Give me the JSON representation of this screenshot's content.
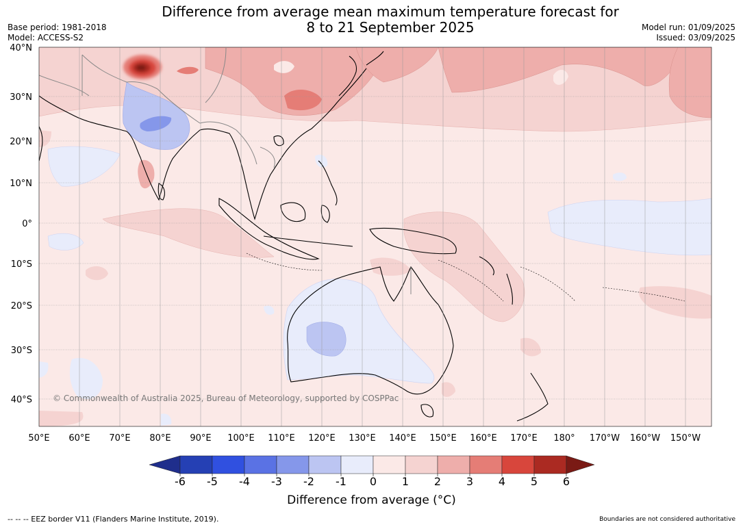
{
  "title": {
    "line1": "Difference from average mean maximum temperature forecast for",
    "line2": "8 to 21 September 2025"
  },
  "meta": {
    "base_period": "Base period: 1981-2018",
    "model": "Model: ACCESS-S2",
    "model_run": "Model run: 01/09/2025",
    "issued": "Issued: 03/09/2025"
  },
  "map": {
    "latitude_labels": [
      "40°N",
      "30°N",
      "20°N",
      "10°N",
      "0°",
      "10°S",
      "20°S",
      "30°S",
      "40°S"
    ],
    "longitude_labels": [
      "50°E",
      "60°E",
      "70°E",
      "80°E",
      "90°E",
      "100°E",
      "110°E",
      "120°E",
      "130°E",
      "140°E",
      "150°E",
      "160°E",
      "170°E",
      "180°",
      "170°W",
      "160°W",
      "150°W"
    ],
    "copyright": "© Commonwealth of Australia 2025, Bureau of Meteorology, supported by COSPPac"
  },
  "colorbar": {
    "ticks": [
      "-6",
      "-5",
      "-4",
      "-3",
      "-2",
      "-1",
      "0",
      "1",
      "2",
      "3",
      "4",
      "5",
      "6"
    ],
    "colors": [
      "#1f2e8c",
      "#2540b4",
      "#3050e0",
      "#5a72e4",
      "#8597ea",
      "#bcc5f2",
      "#e8ecfb",
      "#fbe9e7",
      "#f5d3d1",
      "#eeaeab",
      "#e57d76",
      "#d8463c",
      "#ab2a22",
      "#7a1a15"
    ],
    "label": "Difference from average (°C)"
  },
  "footer": {
    "left": "--  --  -- EEZ border V11 (Flanders Marine Institute, 2019).",
    "right": "Boundaries are not considered authoritative"
  }
}
